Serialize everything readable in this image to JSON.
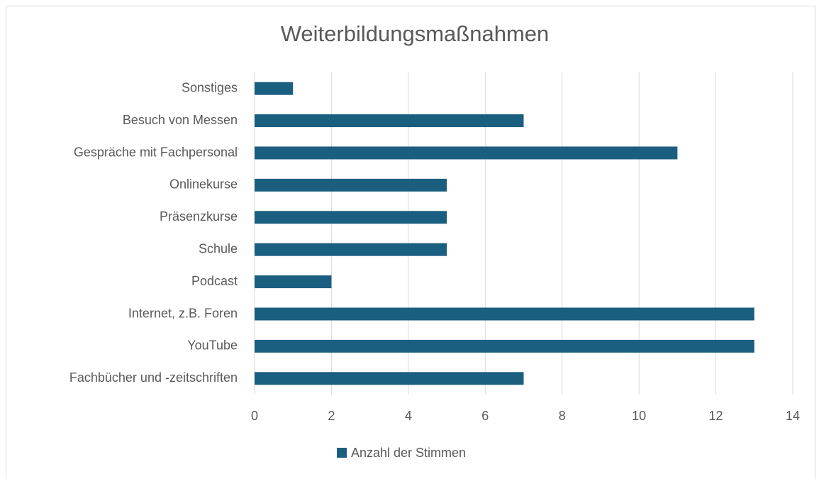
{
  "chart_data": {
    "type": "bar",
    "orientation": "horizontal",
    "title": "Weiterbildungsmaßnahmen",
    "categories": [
      "Fachbücher und -zeitschriften",
      "YouTube",
      "Internet, z.B. Foren",
      "Podcast",
      "Schule",
      "Präsenzkurse",
      "Onlinekurse",
      "Gespräche mit Fachpersonal",
      "Besuch von Messen",
      "Sonstiges"
    ],
    "series": [
      {
        "name": "Anzahl der Stimmen",
        "color": "#1a5e80",
        "values": [
          7,
          13,
          13,
          2,
          5,
          5,
          5,
          11,
          7,
          1
        ]
      }
    ],
    "xlim": [
      0,
      14
    ],
    "xticks": [
      0,
      2,
      4,
      6,
      8,
      10,
      12,
      14
    ],
    "grid": true,
    "legend": "bottom"
  }
}
